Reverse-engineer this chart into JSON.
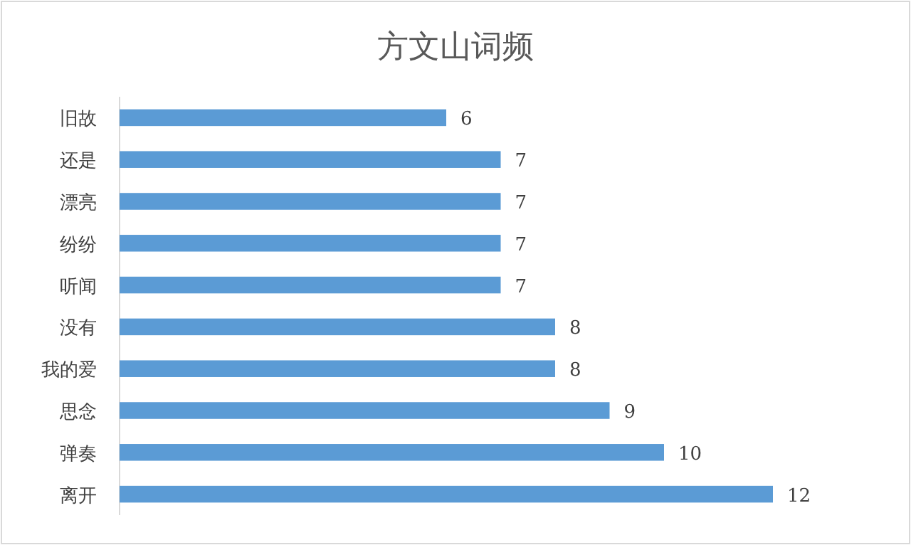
{
  "chart_data": {
    "type": "bar",
    "orientation": "horizontal",
    "title": "方文山词频",
    "categories": [
      "旧故",
      "还是",
      "漂亮",
      "纷纷",
      "听闻",
      "没有",
      "我的爱",
      "思念",
      "弹奏",
      "离开"
    ],
    "values": [
      6,
      7,
      7,
      7,
      7,
      8,
      8,
      9,
      10,
      12
    ],
    "color": "#5b9bd5",
    "data_labels": true
  }
}
